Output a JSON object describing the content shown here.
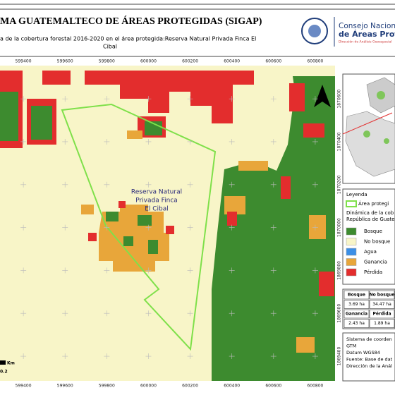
{
  "header": {
    "title": "MA GUATEMALTECO DE ÁREAS PROTEGIDAS  (SIGAP)",
    "subtitle_lines": [
      "a de la cobertura forestal 2016-2020 en el área protegida:Reserva Natural Privada Finca El",
      "Cibal"
    ],
    "logo_lines": [
      "Consejo Nacional",
      "de Áreas Protegid",
      "Dirección de Análisis Geoespacial"
    ]
  },
  "map": {
    "xlim": [
      599288,
      600895
    ],
    "ylim": [
      1869285,
      1870755
    ],
    "xticks": [
      599400,
      599600,
      599800,
      600000,
      600200,
      600400,
      600600,
      600800
    ],
    "yticks": [
      1869400,
      1869600,
      1869800,
      1870000,
      1870200,
      1870400,
      1870600
    ],
    "area_label": [
      "Reserva Natural",
      "Privada Finca",
      "El Cibal"
    ],
    "scale": {
      "unit": "Km",
      "value": 0.2
    }
  },
  "legend": {
    "title": "Leyenda",
    "area": {
      "label": "Área protegi",
      "color": "#7fe04a"
    },
    "subheader_lines": [
      "Dinámica de la cob",
      "República de Guate"
    ],
    "items": [
      {
        "label": "Bosque",
        "color": "#3d8b2f"
      },
      {
        "label": "No bosque",
        "color": "#f8f5c8"
      },
      {
        "label": "Agua",
        "color": "#3c8fe6"
      },
      {
        "label": "Ganancia",
        "color": "#e8a63a"
      },
      {
        "label": "Pérdida",
        "color": "#e32d2d"
      }
    ]
  },
  "table": {
    "rows": [
      [
        "Bosque",
        "No bosque"
      ],
      [
        "3.69 ha",
        "34.47 ha"
      ],
      [
        "Ganancia",
        "Pérdida"
      ],
      [
        "2.43 ha",
        "1.89 ha"
      ]
    ]
  },
  "footer": {
    "lines": [
      "Sistema de coorden",
      "GTM",
      "Datum WGS84",
      "Fuente: Base de dat",
      "Dirección de la Anál"
    ]
  }
}
